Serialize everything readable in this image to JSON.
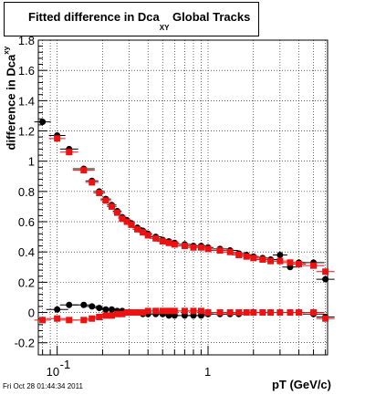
{
  "title": {
    "main": "Fitted difference in Dca",
    "subscript": "XY",
    "suffix": " Global Tracks"
  },
  "footer": "Fri Oct 28 01:44:34 2011",
  "chart_data": {
    "type": "scatter",
    "x_scale": "log",
    "xlim": [
      0.075,
      6.2
    ],
    "ylim": [
      -0.28,
      1.8
    ],
    "grid": true,
    "xlabel": "pT (GeV/c)",
    "ylabel": {
      "main": "difference in Dca",
      "subscript": "xy"
    },
    "yticks": [
      "-0.2",
      "0",
      "0.2",
      "0.4",
      "0.6",
      "0.8",
      "1",
      "1.2",
      "1.4",
      "1.6",
      "1.8"
    ],
    "xticks": [
      {
        "value": 0.1,
        "base": "10",
        "exponent": "-1"
      },
      {
        "value": 1,
        "base": "1",
        "exponent": ""
      }
    ],
    "series": [
      {
        "marker": "circle",
        "color": "#000000",
        "x": [
          0.08,
          0.1,
          0.12,
          0.15,
          0.17,
          0.19,
          0.21,
          0.23,
          0.25,
          0.27,
          0.29,
          0.31,
          0.34,
          0.37,
          0.4,
          0.45,
          0.5,
          0.55,
          0.6,
          0.7,
          0.8,
          0.9,
          1.0,
          1.2,
          1.4,
          1.6,
          1.8,
          2.0,
          2.3,
          2.6,
          3.0,
          3.5,
          4.0,
          5.0,
          6.0
        ],
        "y": [
          1.26,
          0.02,
          0.05,
          0.05,
          0.04,
          0.03,
          0.02,
          0.02,
          0.01,
          0.01,
          0.0,
          0.0,
          0.0,
          -0.01,
          -0.01,
          -0.01,
          -0.01,
          -0.02,
          -0.02,
          -0.02,
          -0.02,
          -0.02,
          -0.01,
          -0.01,
          -0.01,
          -0.01,
          0.0,
          0.0,
          0.0,
          0.0,
          0.0,
          0.0,
          0.0,
          -0.01,
          -0.03
        ]
      },
      {
        "marker": "square",
        "color": "#ee1111",
        "x": [
          0.08,
          0.1,
          0.12,
          0.15,
          0.17,
          0.19,
          0.21,
          0.23,
          0.25,
          0.27,
          0.29,
          0.31,
          0.34,
          0.37,
          0.4,
          0.45,
          0.5,
          0.55,
          0.6,
          0.7,
          0.8,
          0.9,
          1.0,
          1.2,
          1.4,
          1.6,
          1.8,
          2.0,
          2.3,
          2.6,
          3.0,
          3.5,
          4.0,
          5.0,
          6.0
        ],
        "y": [
          -0.05,
          -0.04,
          -0.05,
          -0.05,
          -0.04,
          -0.03,
          -0.02,
          -0.02,
          -0.01,
          -0.01,
          0.0,
          0.0,
          0.0,
          0.0,
          0.01,
          0.01,
          0.01,
          0.01,
          0.01,
          0.01,
          0.01,
          0.01,
          0.0,
          0.0,
          0.0,
          0.0,
          0.0,
          0.0,
          0.0,
          0.0,
          0.0,
          0.0,
          0.0,
          0.0,
          -0.04
        ]
      },
      {
        "marker": "circle",
        "color": "#000000",
        "x": [
          0.1,
          0.12,
          0.15,
          0.17,
          0.19,
          0.21,
          0.23,
          0.25,
          0.27,
          0.29,
          0.31,
          0.34,
          0.37,
          0.4,
          0.45,
          0.5,
          0.55,
          0.6,
          0.7,
          0.8,
          0.9,
          1.0,
          1.2,
          1.4,
          1.6,
          1.8,
          2.0,
          2.3,
          2.6,
          3.0,
          3.5,
          4.0,
          5.0,
          6.0
        ],
        "y": [
          1.17,
          1.08,
          0.95,
          0.87,
          0.8,
          0.75,
          0.71,
          0.67,
          0.63,
          0.61,
          0.59,
          0.56,
          0.54,
          0.52,
          0.5,
          0.48,
          0.47,
          0.46,
          0.45,
          0.44,
          0.44,
          0.43,
          0.42,
          0.41,
          0.39,
          0.38,
          0.37,
          0.36,
          0.35,
          0.38,
          0.3,
          0.33,
          0.33,
          0.22
        ]
      },
      {
        "marker": "square",
        "color": "#ee1111",
        "x": [
          0.1,
          0.12,
          0.15,
          0.17,
          0.19,
          0.21,
          0.23,
          0.25,
          0.27,
          0.29,
          0.31,
          0.34,
          0.37,
          0.4,
          0.45,
          0.5,
          0.55,
          0.6,
          0.7,
          0.8,
          0.9,
          1.0,
          1.2,
          1.4,
          1.6,
          1.8,
          2.0,
          2.3,
          2.6,
          3.0,
          3.5,
          4.0,
          5.0,
          6.0
        ],
        "y": [
          1.15,
          1.06,
          0.94,
          0.86,
          0.79,
          0.74,
          0.7,
          0.66,
          0.62,
          0.6,
          0.58,
          0.55,
          0.53,
          0.51,
          0.49,
          0.47,
          0.46,
          0.45,
          0.44,
          0.43,
          0.43,
          0.42,
          0.41,
          0.4,
          0.38,
          0.37,
          0.36,
          0.35,
          0.34,
          0.34,
          0.33,
          0.32,
          0.31,
          0.27
        ]
      }
    ]
  }
}
